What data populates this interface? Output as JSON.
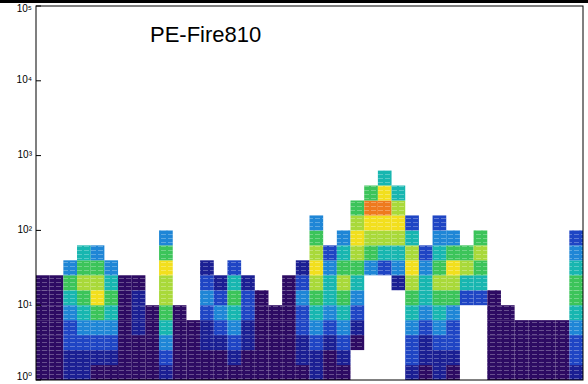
{
  "chart_data": {
    "type": "heatmap",
    "title": "PE-Fire810",
    "log": "y",
    "tick_labels": "y",
    "xlim": [
      0,
      40
    ],
    "ylim": [
      1,
      100000
    ],
    "yticks": [
      {
        "value": 1,
        "label": "10⁰"
      },
      {
        "value": 10,
        "label": "10¹"
      },
      {
        "value": 100,
        "label": "10²"
      },
      {
        "value": 1000,
        "label": "10³"
      },
      {
        "value": 10000,
        "label": "10⁴"
      },
      {
        "value": 100000,
        "label": "10⁵"
      }
    ],
    "x_bins": [
      0,
      1,
      2,
      3,
      4,
      5,
      6,
      7,
      8,
      9,
      10,
      11,
      12,
      13,
      14,
      15,
      16,
      17,
      18,
      19,
      20,
      21,
      22,
      23,
      24,
      25,
      26,
      27,
      28,
      29,
      30,
      31,
      32,
      33,
      34,
      35,
      36,
      37,
      38,
      39,
      40
    ],
    "y_bins": [
      1,
      1.585,
      2.512,
      3.981,
      6.31,
      10,
      15.85,
      25.12,
      39.81,
      63.1,
      100,
      158.5,
      251.2,
      398.1,
      631
    ],
    "zlim": [
      0,
      9
    ],
    "cells": [
      [
        1,
        1,
        1,
        1,
        1,
        1,
        1,
        0,
        0,
        0,
        0,
        0,
        0,
        0
      ],
      [
        1,
        1,
        1,
        1,
        1,
        1,
        1,
        0,
        0,
        0,
        0,
        0,
        0,
        0
      ],
      [
        2,
        2,
        3,
        3,
        4,
        5,
        6,
        4,
        0,
        0,
        0,
        0,
        0,
        0
      ],
      [
        2,
        2,
        3,
        4,
        5,
        6,
        7,
        6,
        5,
        0,
        0,
        0,
        0,
        0
      ],
      [
        1,
        2,
        3,
        4,
        6,
        8,
        7,
        6,
        4,
        0,
        0,
        0,
        0,
        0
      ],
      [
        1,
        2,
        3,
        4,
        5,
        6,
        5,
        4,
        0,
        0,
        0,
        0,
        0,
        0
      ],
      [
        1,
        1,
        1,
        1,
        1,
        1,
        1,
        0,
        0,
        0,
        0,
        0,
        0,
        0
      ],
      [
        1,
        1,
        1,
        2,
        2,
        2,
        1,
        0,
        0,
        0,
        0,
        0,
        0,
        0
      ],
      [
        1,
        1,
        1,
        1,
        1,
        0,
        0,
        0,
        0,
        0,
        0,
        0,
        0,
        0
      ],
      [
        2,
        3,
        4,
        5,
        6,
        7,
        7,
        8,
        6,
        4,
        0,
        0,
        0,
        0
      ],
      [
        1,
        1,
        1,
        1,
        1,
        0,
        0,
        0,
        0,
        0,
        0,
        0,
        0,
        0
      ],
      [
        1,
        1,
        1,
        1,
        0,
        0,
        0,
        0,
        0,
        0,
        0,
        0,
        0,
        0
      ],
      [
        1,
        1,
        2,
        2,
        3,
        4,
        3,
        2,
        0,
        0,
        0,
        0,
        0,
        0
      ],
      [
        1,
        1,
        2,
        3,
        4,
        3,
        2,
        0,
        0,
        0,
        0,
        0,
        0,
        0
      ],
      [
        1,
        2,
        3,
        4,
        5,
        6,
        5,
        3,
        0,
        0,
        0,
        0,
        0,
        0
      ],
      [
        1,
        1,
        2,
        2,
        3,
        3,
        2,
        0,
        0,
        0,
        0,
        0,
        0,
        0
      ],
      [
        1,
        1,
        1,
        1,
        1,
        1,
        0,
        0,
        0,
        0,
        0,
        0,
        0,
        0
      ],
      [
        1,
        1,
        1,
        1,
        1,
        0,
        0,
        0,
        0,
        0,
        0,
        0,
        0,
        0
      ],
      [
        1,
        1,
        1,
        1,
        1,
        1,
        1,
        0,
        0,
        0,
        0,
        0,
        0,
        0
      ],
      [
        1,
        2,
        2,
        3,
        3,
        4,
        3,
        2,
        0,
        0,
        0,
        0,
        0,
        0
      ],
      [
        2,
        2,
        3,
        4,
        5,
        6,
        7,
        8,
        7,
        6,
        4,
        0,
        0,
        0
      ],
      [
        1,
        1,
        2,
        3,
        4,
        5,
        5,
        4,
        3,
        0,
        0,
        0,
        0,
        0
      ],
      [
        1,
        2,
        3,
        4,
        5,
        6,
        7,
        6,
        5,
        4,
        0,
        0,
        0,
        0
      ],
      [
        0,
        0,
        1,
        2,
        3,
        4,
        5,
        6,
        7,
        8,
        7,
        6,
        0,
        0
      ],
      [
        0,
        0,
        0,
        0,
        0,
        0,
        0,
        4,
        6,
        7,
        8,
        9,
        6,
        0
      ],
      [
        0,
        0,
        0,
        0,
        0,
        0,
        0,
        3,
        5,
        7,
        8,
        9,
        8,
        5
      ],
      [
        0,
        0,
        0,
        0,
        0,
        0,
        2,
        4,
        5,
        7,
        8,
        7,
        5,
        0
      ],
      [
        2,
        3,
        3,
        4,
        5,
        6,
        7,
        8,
        7,
        5,
        3,
        0,
        0,
        0
      ],
      [
        1,
        2,
        2,
        3,
        4,
        5,
        5,
        4,
        3,
        0,
        0,
        0,
        0,
        0
      ],
      [
        2,
        2,
        3,
        4,
        5,
        6,
        7,
        6,
        5,
        4,
        3,
        0,
        0,
        0
      ],
      [
        1,
        2,
        3,
        3,
        4,
        6,
        7,
        8,
        6,
        4,
        0,
        0,
        0,
        0
      ],
      [
        0,
        0,
        0,
        0,
        0,
        3,
        5,
        7,
        6,
        0,
        0,
        0,
        0,
        0
      ],
      [
        0,
        0,
        0,
        0,
        0,
        3,
        5,
        6,
        7,
        6,
        0,
        0,
        0,
        0
      ],
      [
        1,
        1,
        1,
        1,
        1,
        1,
        0,
        0,
        0,
        0,
        0,
        0,
        0,
        0
      ],
      [
        1,
        1,
        1,
        1,
        1,
        0,
        0,
        0,
        0,
        0,
        0,
        0,
        0,
        0
      ],
      [
        1,
        1,
        1,
        1,
        0,
        0,
        0,
        0,
        0,
        0,
        0,
        0,
        0,
        0
      ],
      [
        1,
        1,
        1,
        1,
        0,
        0,
        0,
        0,
        0,
        0,
        0,
        0,
        0,
        0
      ],
      [
        1,
        1,
        1,
        1,
        0,
        0,
        0,
        0,
        0,
        0,
        0,
        0,
        0,
        0
      ],
      [
        1,
        1,
        1,
        1,
        0,
        0,
        0,
        0,
        0,
        0,
        0,
        0,
        0,
        0
      ],
      [
        2,
        3,
        3,
        4,
        5,
        6,
        6,
        5,
        4,
        3,
        0,
        0,
        0,
        0
      ]
    ]
  }
}
